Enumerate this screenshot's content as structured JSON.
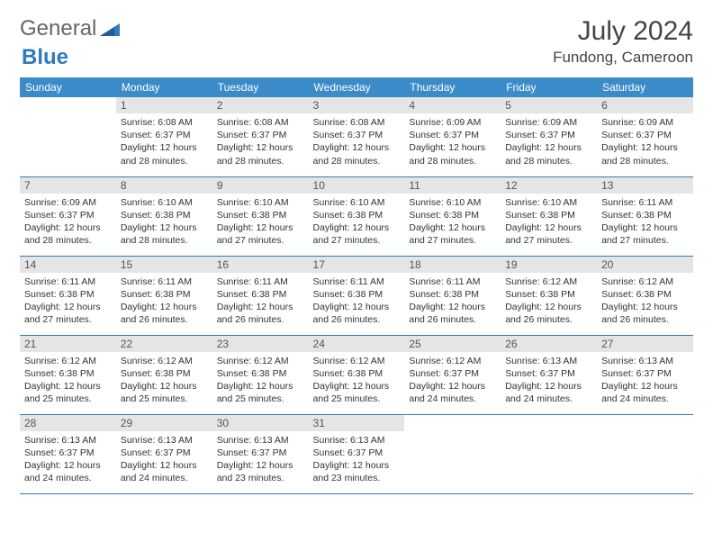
{
  "logo": {
    "text1": "General",
    "text2": "Blue"
  },
  "title": {
    "month": "July 2024",
    "location": "Fundong, Cameroon"
  },
  "colors": {
    "header_bg": "#3b8bc9",
    "header_text": "#ffffff",
    "daynum_bg": "#e5e5e5",
    "border": "#2d7bc0",
    "logo_gray": "#666666",
    "logo_blue": "#2d7bc0"
  },
  "weekdays": [
    "Sunday",
    "Monday",
    "Tuesday",
    "Wednesday",
    "Thursday",
    "Friday",
    "Saturday"
  ],
  "start_offset": 1,
  "days": [
    {
      "n": 1,
      "sr": "6:08 AM",
      "ss": "6:37 PM",
      "dl": "12 hours and 28 minutes."
    },
    {
      "n": 2,
      "sr": "6:08 AM",
      "ss": "6:37 PM",
      "dl": "12 hours and 28 minutes."
    },
    {
      "n": 3,
      "sr": "6:08 AM",
      "ss": "6:37 PM",
      "dl": "12 hours and 28 minutes."
    },
    {
      "n": 4,
      "sr": "6:09 AM",
      "ss": "6:37 PM",
      "dl": "12 hours and 28 minutes."
    },
    {
      "n": 5,
      "sr": "6:09 AM",
      "ss": "6:37 PM",
      "dl": "12 hours and 28 minutes."
    },
    {
      "n": 6,
      "sr": "6:09 AM",
      "ss": "6:37 PM",
      "dl": "12 hours and 28 minutes."
    },
    {
      "n": 7,
      "sr": "6:09 AM",
      "ss": "6:37 PM",
      "dl": "12 hours and 28 minutes."
    },
    {
      "n": 8,
      "sr": "6:10 AM",
      "ss": "6:38 PM",
      "dl": "12 hours and 28 minutes."
    },
    {
      "n": 9,
      "sr": "6:10 AM",
      "ss": "6:38 PM",
      "dl": "12 hours and 27 minutes."
    },
    {
      "n": 10,
      "sr": "6:10 AM",
      "ss": "6:38 PM",
      "dl": "12 hours and 27 minutes."
    },
    {
      "n": 11,
      "sr": "6:10 AM",
      "ss": "6:38 PM",
      "dl": "12 hours and 27 minutes."
    },
    {
      "n": 12,
      "sr": "6:10 AM",
      "ss": "6:38 PM",
      "dl": "12 hours and 27 minutes."
    },
    {
      "n": 13,
      "sr": "6:11 AM",
      "ss": "6:38 PM",
      "dl": "12 hours and 27 minutes."
    },
    {
      "n": 14,
      "sr": "6:11 AM",
      "ss": "6:38 PM",
      "dl": "12 hours and 27 minutes."
    },
    {
      "n": 15,
      "sr": "6:11 AM",
      "ss": "6:38 PM",
      "dl": "12 hours and 26 minutes."
    },
    {
      "n": 16,
      "sr": "6:11 AM",
      "ss": "6:38 PM",
      "dl": "12 hours and 26 minutes."
    },
    {
      "n": 17,
      "sr": "6:11 AM",
      "ss": "6:38 PM",
      "dl": "12 hours and 26 minutes."
    },
    {
      "n": 18,
      "sr": "6:11 AM",
      "ss": "6:38 PM",
      "dl": "12 hours and 26 minutes."
    },
    {
      "n": 19,
      "sr": "6:12 AM",
      "ss": "6:38 PM",
      "dl": "12 hours and 26 minutes."
    },
    {
      "n": 20,
      "sr": "6:12 AM",
      "ss": "6:38 PM",
      "dl": "12 hours and 26 minutes."
    },
    {
      "n": 21,
      "sr": "6:12 AM",
      "ss": "6:38 PM",
      "dl": "12 hours and 25 minutes."
    },
    {
      "n": 22,
      "sr": "6:12 AM",
      "ss": "6:38 PM",
      "dl": "12 hours and 25 minutes."
    },
    {
      "n": 23,
      "sr": "6:12 AM",
      "ss": "6:38 PM",
      "dl": "12 hours and 25 minutes."
    },
    {
      "n": 24,
      "sr": "6:12 AM",
      "ss": "6:38 PM",
      "dl": "12 hours and 25 minutes."
    },
    {
      "n": 25,
      "sr": "6:12 AM",
      "ss": "6:37 PM",
      "dl": "12 hours and 24 minutes."
    },
    {
      "n": 26,
      "sr": "6:13 AM",
      "ss": "6:37 PM",
      "dl": "12 hours and 24 minutes."
    },
    {
      "n": 27,
      "sr": "6:13 AM",
      "ss": "6:37 PM",
      "dl": "12 hours and 24 minutes."
    },
    {
      "n": 28,
      "sr": "6:13 AM",
      "ss": "6:37 PM",
      "dl": "12 hours and 24 minutes."
    },
    {
      "n": 29,
      "sr": "6:13 AM",
      "ss": "6:37 PM",
      "dl": "12 hours and 24 minutes."
    },
    {
      "n": 30,
      "sr": "6:13 AM",
      "ss": "6:37 PM",
      "dl": "12 hours and 23 minutes."
    },
    {
      "n": 31,
      "sr": "6:13 AM",
      "ss": "6:37 PM",
      "dl": "12 hours and 23 minutes."
    }
  ],
  "labels": {
    "sunrise": "Sunrise:",
    "sunset": "Sunset:",
    "daylight": "Daylight:"
  }
}
